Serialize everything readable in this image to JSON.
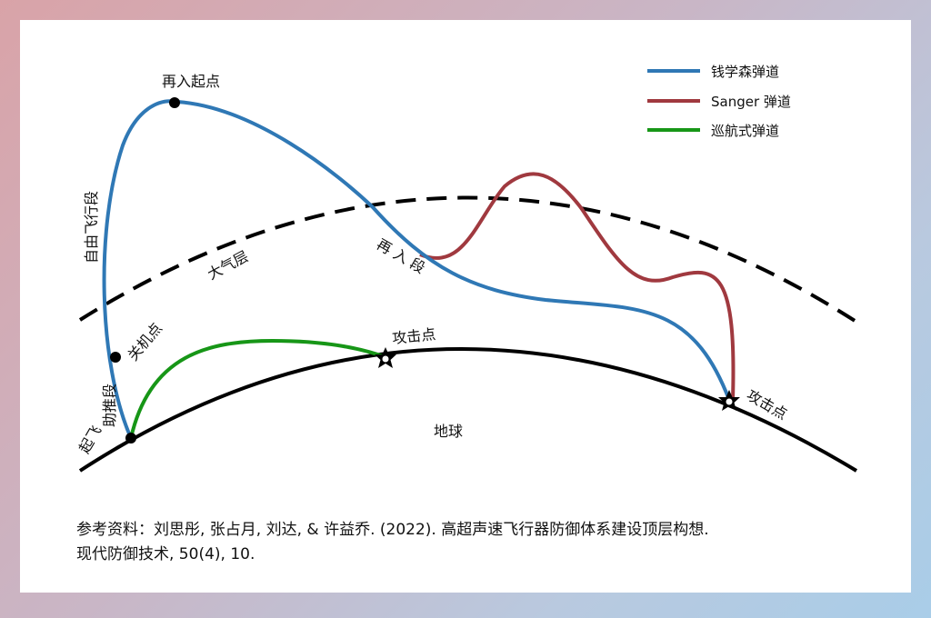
{
  "legend": {
    "items": [
      {
        "label": "钱学森弹道",
        "color": "#2f78b5"
      },
      {
        "label": "Sanger 弹道",
        "color": "#a0393f"
      },
      {
        "label": "巡航式弹道",
        "color": "#179617"
      }
    ]
  },
  "labels": {
    "reentry_start": "再入起点",
    "free_flight": "自由飞行段",
    "atmosphere": "大气层",
    "reentry_segment": "再 入 段",
    "burnout": "关机点",
    "boost": "助推段",
    "takeoff": "起飞",
    "attack_point_1": "攻击点",
    "attack_point_2": "攻击点",
    "earth": "地球"
  },
  "reference": {
    "line1": "参考资料：刘思彤, 张占月, 刘达, & 许益乔. (2022). 高超声速飞行器防御体系建设顶层构想.",
    "line2": "现代防御技术, 50(4), 10."
  }
}
